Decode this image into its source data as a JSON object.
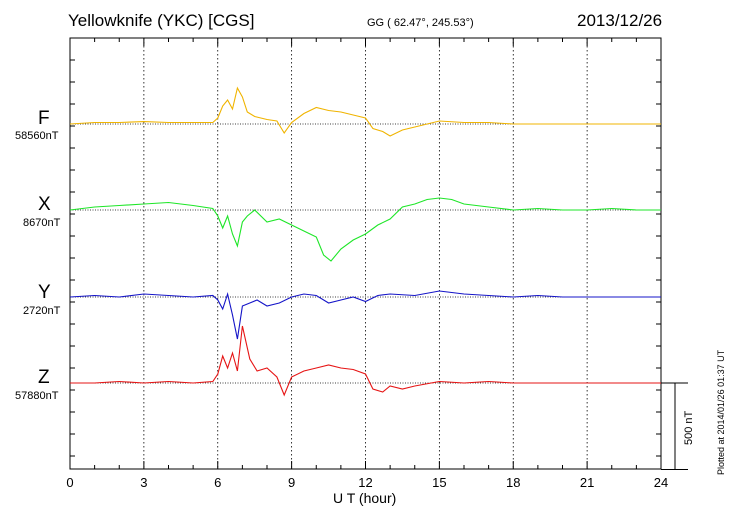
{
  "header": {
    "station": "Yellowknife (YKC)  [CGS]",
    "coords": "GG ( 62.47°, 245.53°)",
    "date": "2013/12/26"
  },
  "footer": {
    "xlabel": "U T (hour)",
    "plotted": "Plotted at 2014/01/26 01:37 UT"
  },
  "scale_bar": {
    "label": "500 nT",
    "value_nt": 500
  },
  "colors": {
    "F": "#f0b400",
    "X": "#1ee628",
    "Y": "#1414c8",
    "Z": "#e61414"
  },
  "chart_data": {
    "type": "line",
    "xlabel": "U T (hour)",
    "xlim": [
      0,
      24
    ],
    "xticks": [
      0,
      3,
      6,
      9,
      12,
      15,
      18,
      21,
      24
    ],
    "grid": true,
    "series": [
      {
        "name": "F",
        "baseline_label": "58560nT",
        "baseline_nt": 58560,
        "x": [
          0,
          1,
          2,
          3,
          4,
          5,
          5.8,
          6,
          6.2,
          6.4,
          6.6,
          6.8,
          7,
          7.2,
          7.5,
          8,
          8.4,
          8.7,
          9,
          9.5,
          10,
          10.5,
          11,
          11.5,
          12,
          12.3,
          12.7,
          13,
          13.5,
          14,
          15,
          16,
          17,
          18,
          19,
          20,
          21,
          22,
          23,
          24
        ],
        "y": [
          0,
          5,
          5,
          8,
          5,
          5,
          5,
          20,
          60,
          80,
          50,
          120,
          90,
          40,
          25,
          15,
          10,
          -30,
          5,
          35,
          55,
          45,
          40,
          30,
          20,
          -15,
          -25,
          -40,
          -20,
          -10,
          10,
          5,
          5,
          0,
          0,
          0,
          0,
          0,
          0,
          0
        ]
      },
      {
        "name": "X",
        "baseline_label": "8670nT",
        "baseline_nt": 8670,
        "x": [
          0,
          1,
          2,
          3,
          4,
          5,
          5.8,
          6,
          6.2,
          6.4,
          6.6,
          6.8,
          7,
          7.2,
          7.5,
          8,
          8.5,
          9,
          9.5,
          10,
          10.3,
          10.6,
          11,
          11.5,
          12,
          12.5,
          13,
          13.5,
          14,
          14.5,
          15,
          15.5,
          16,
          17,
          18,
          19,
          20,
          21,
          22,
          23,
          24
        ],
        "y": [
          0,
          10,
          15,
          20,
          25,
          15,
          5,
          -20,
          -60,
          -20,
          -80,
          -120,
          -40,
          -20,
          0,
          -40,
          -30,
          -50,
          -70,
          -90,
          -150,
          -170,
          -130,
          -100,
          -80,
          -50,
          -30,
          10,
          20,
          35,
          40,
          35,
          20,
          10,
          0,
          5,
          0,
          0,
          5,
          0,
          0
        ]
      },
      {
        "name": "Y",
        "baseline_label": "2720nT",
        "baseline_nt": 2720,
        "x": [
          0,
          1,
          2,
          3,
          4,
          5,
          5.8,
          6,
          6.2,
          6.4,
          6.6,
          6.8,
          7,
          7.3,
          7.6,
          8,
          8.5,
          9,
          9.5,
          10,
          10.5,
          11,
          11.5,
          12,
          12.5,
          13,
          14,
          15,
          15.5,
          16,
          17,
          18,
          19,
          20,
          21,
          22,
          23,
          24
        ],
        "y": [
          0,
          5,
          0,
          10,
          5,
          0,
          5,
          -10,
          -40,
          10,
          -60,
          -140,
          -30,
          -20,
          -10,
          -30,
          -20,
          0,
          10,
          5,
          -20,
          -10,
          0,
          -15,
          5,
          10,
          5,
          20,
          15,
          10,
          5,
          0,
          5,
          0,
          0,
          0,
          0,
          0
        ]
      },
      {
        "name": "Z",
        "baseline_label": "57880nT",
        "baseline_nt": 57880,
        "x": [
          0,
          1,
          2,
          3,
          4,
          5,
          5.8,
          6,
          6.2,
          6.4,
          6.6,
          6.8,
          7,
          7.3,
          7.6,
          8,
          8.4,
          8.7,
          9,
          9.5,
          10,
          10.5,
          11,
          11.5,
          12,
          12.3,
          12.7,
          13,
          13.5,
          14,
          15,
          16,
          17,
          18,
          19,
          20,
          21,
          22,
          23,
          24
        ],
        "y": [
          0,
          0,
          5,
          0,
          5,
          0,
          5,
          30,
          90,
          50,
          100,
          40,
          190,
          80,
          40,
          50,
          20,
          -40,
          20,
          40,
          50,
          60,
          50,
          45,
          30,
          -20,
          -30,
          -10,
          -20,
          -10,
          5,
          0,
          5,
          0,
          0,
          0,
          0,
          0,
          0,
          0
        ]
      }
    ]
  }
}
